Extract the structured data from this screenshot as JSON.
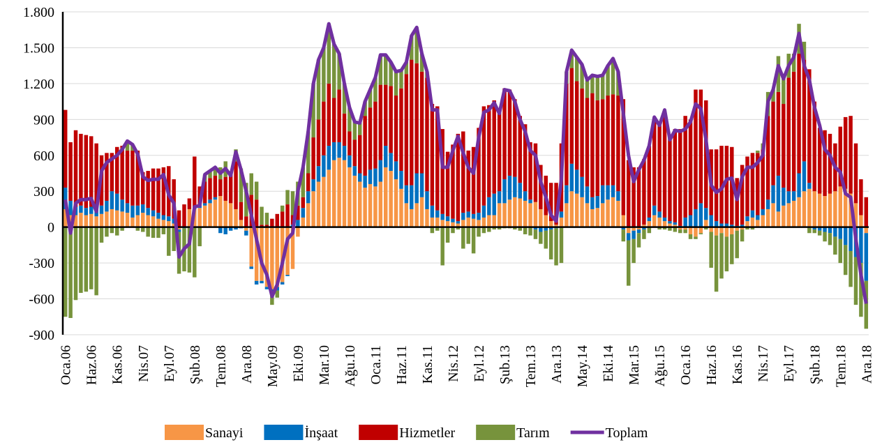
{
  "chart_data": {
    "type": "bar",
    "stacked": true,
    "categories": [
      "Oca.06",
      null,
      null,
      null,
      null,
      "Haz.06",
      null,
      null,
      null,
      null,
      "Kas.06",
      null,
      null,
      null,
      null,
      "Nis.07",
      null,
      null,
      null,
      null,
      "Eyl.07",
      null,
      null,
      null,
      null,
      "Şub.08",
      null,
      null,
      null,
      null,
      "Tem.08",
      null,
      null,
      null,
      null,
      "Ara.08",
      null,
      null,
      null,
      null,
      "May.09",
      null,
      null,
      null,
      null,
      "Eki.09",
      null,
      null,
      null,
      null,
      "Mar.10",
      null,
      null,
      null,
      null,
      "Ağu.10",
      null,
      null,
      null,
      null,
      "Oca.11",
      null,
      null,
      null,
      null,
      "Haz.11",
      null,
      null,
      null,
      null,
      "Kas.11",
      null,
      null,
      null,
      null,
      "Nis.12",
      null,
      null,
      null,
      null,
      "Eyl.12",
      null,
      null,
      null,
      null,
      "Şub.13",
      null,
      null,
      null,
      null,
      "Tem.13",
      null,
      null,
      null,
      null,
      "Ara.13",
      null,
      null,
      null,
      null,
      "May.14",
      null,
      null,
      null,
      null,
      "Eki.14",
      null,
      null,
      null,
      null,
      "Mar.15",
      null,
      null,
      null,
      null,
      "Ağu.15",
      null,
      null,
      null,
      null,
      "Oca.16",
      null,
      null,
      null,
      null,
      "Haz.16",
      null,
      null,
      null,
      null,
      "Kas.16",
      null,
      null,
      null,
      null,
      "Nis.17",
      null,
      null,
      null,
      null,
      "Eyl.17",
      null,
      null,
      null,
      null,
      "Şub.18",
      null,
      null,
      null,
      null,
      "Tem.18",
      null,
      null,
      null,
      null,
      "Ara.18"
    ],
    "series": [
      {
        "name": "Sanayi",
        "color": "#F79646",
        "values": [
          150,
          100,
          100,
          120,
          100,
          110,
          90,
          110,
          130,
          150,
          140,
          130,
          120,
          80,
          100,
          120,
          100,
          90,
          70,
          60,
          50,
          30,
          -20,
          0,
          150,
          150,
          160,
          180,
          200,
          230,
          260,
          220,
          200,
          150,
          60,
          -30,
          -330,
          -450,
          -450,
          -500,
          -520,
          -500,
          -460,
          -400,
          -350,
          -80,
          80,
          200,
          300,
          380,
          420,
          480,
          560,
          580,
          560,
          500,
          430,
          380,
          330,
          360,
          340,
          380,
          500,
          470,
          400,
          320,
          200,
          150,
          200,
          250,
          150,
          80,
          80,
          60,
          50,
          40,
          30,
          60,
          80,
          70,
          60,
          80,
          100,
          100,
          200,
          200,
          230,
          250,
          240,
          220,
          200,
          210,
          150,
          100,
          50,
          20,
          80,
          200,
          300,
          280,
          250,
          200,
          150,
          160,
          200,
          230,
          250,
          220,
          100,
          -50,
          -30,
          -20,
          20,
          50,
          100,
          80,
          50,
          30,
          20,
          -20,
          -20,
          -60,
          -80,
          -50,
          60,
          -40,
          -70,
          -50,
          -80,
          -60,
          -30,
          -20,
          50,
          80,
          60,
          100,
          150,
          200,
          130,
          180,
          200,
          220,
          250,
          300,
          320,
          300,
          280,
          260,
          280,
          300,
          340,
          320,
          280,
          200,
          100,
          -50
        ]
      },
      {
        "name": "İnşaat",
        "color": "#0070C0",
        "values": [
          180,
          120,
          70,
          60,
          60,
          60,
          50,
          70,
          90,
          150,
          140,
          100,
          80,
          100,
          80,
          70,
          60,
          50,
          50,
          40,
          40,
          40,
          -20,
          -10,
          0,
          10,
          20,
          20,
          30,
          20,
          -50,
          -60,
          -30,
          -20,
          -10,
          -40,
          -20,
          -30,
          -20,
          -20,
          -30,
          -30,
          -20,
          -10,
          20,
          60,
          80,
          100,
          100,
          130,
          180,
          200,
          150,
          130,
          120,
          100,
          80,
          70,
          100,
          120,
          150,
          180,
          180,
          150,
          150,
          150,
          150,
          200,
          250,
          200,
          150,
          100,
          60,
          50,
          40,
          30,
          20,
          60,
          50,
          40,
          60,
          100,
          150,
          180,
          100,
          200,
          200,
          170,
          130,
          80,
          30,
          -20,
          -40,
          -30,
          -20,
          -10,
          50,
          150,
          230,
          200,
          170,
          140,
          100,
          100,
          150,
          120,
          100,
          80,
          -20,
          -60,
          -70,
          -30,
          -20,
          30,
          80,
          50,
          30,
          20,
          20,
          10,
          80,
          100,
          150,
          200,
          100,
          100,
          50,
          30,
          30,
          20,
          10,
          20,
          40,
          60,
          40,
          50,
          80,
          150,
          300,
          150,
          100,
          80,
          200,
          250,
          50,
          -20,
          -30,
          -40,
          -50,
          -80,
          -100,
          -150,
          -200,
          -250,
          -300,
          -400
        ]
      },
      {
        "name": "Hizmetler",
        "color": "#C00000",
        "values": [
          650,
          490,
          640,
          600,
          610,
          590,
          560,
          420,
          400,
          320,
          390,
          450,
          440,
          460,
          460,
          270,
          310,
          350,
          370,
          400,
          420,
          330,
          140,
          190,
          90,
          430,
          160,
          180,
          180,
          180,
          140,
          200,
          250,
          400,
          150,
          90,
          270,
          230,
          20,
          20,
          70,
          110,
          130,
          190,
          80,
          120,
          90,
          150,
          350,
          390,
          450,
          520,
          370,
          440,
          270,
          200,
          220,
          320,
          500,
          520,
          560,
          630,
          510,
          560,
          550,
          690,
          930,
          1050,
          920,
          850,
          950,
          850,
          870,
          710,
          540,
          620,
          730,
          680,
          510,
          560,
          710,
          830,
          770,
          780,
          670,
          760,
          720,
          650,
          560,
          560,
          480,
          490,
          370,
          330,
          320,
          350,
          570,
          850,
          800,
          740,
          740,
          740,
          870,
          800,
          720,
          750,
          760,
          800,
          970,
          560,
          500,
          500,
          550,
          600,
          700,
          750,
          850,
          700,
          780,
          810,
          850,
          800,
          1000,
          950,
          900,
          550,
          600,
          650,
          650,
          650,
          400,
          500,
          500,
          480,
          520,
          500,
          700,
          700,
          700,
          700,
          950,
          1000,
          1000,
          850,
          950,
          750,
          550,
          550,
          500,
          400,
          500,
          600,
          650,
          500,
          300,
          250
        ]
      },
      {
        "name": "Tarım",
        "color": "#77933C",
        "values": [
          -750,
          -760,
          -610,
          -550,
          -540,
          -520,
          -570,
          -130,
          -80,
          -50,
          -70,
          -30,
          80,
          50,
          -30,
          -40,
          -80,
          -90,
          -90,
          -60,
          -240,
          -200,
          -350,
          -360,
          -380,
          -420,
          -160,
          60,
          60,
          70,
          100,
          130,
          10,
          100,
          280,
          280,
          180,
          150,
          150,
          100,
          -100,
          -60,
          50,
          120,
          200,
          200,
          250,
          350,
          450,
          500,
          450,
          500,
          450,
          300,
          250,
          200,
          150,
          100,
          120,
          150,
          200,
          250,
          250,
          200,
          200,
          150,
          100,
          200,
          300,
          150,
          50,
          -50,
          -30,
          -320,
          -130,
          -50,
          -20,
          -180,
          -140,
          -220,
          -80,
          -50,
          -40,
          -20,
          -20,
          -10,
          -10,
          -20,
          -30,
          -60,
          -70,
          -80,
          -100,
          -150,
          -250,
          -310,
          -300,
          100,
          150,
          200,
          200,
          150,
          150,
          200,
          200,
          250,
          300,
          200,
          -100,
          -380,
          -200,
          -120,
          -80,
          -50,
          0,
          -20,
          -20,
          -30,
          -40,
          -30,
          -30,
          -40,
          -20,
          -10,
          -20,
          -300,
          -470,
          -380,
          -290,
          -250,
          -230,
          -100,
          -20,
          -20,
          20,
          50,
          200,
          100,
          300,
          250,
          200,
          150,
          250,
          150,
          -50,
          -30,
          -40,
          -80,
          -100,
          -150,
          -200,
          -250,
          -300,
          -400,
          -450,
          -400
        ]
      },
      {
        "name": "Toplam",
        "color": "#7030A0",
        "type": "line",
        "values": [
          230,
          -50,
          200,
          230,
          230,
          240,
          130,
          470,
          540,
          570,
          600,
          650,
          720,
          690,
          610,
          420,
          390,
          400,
          400,
          440,
          270,
          200,
          -250,
          -180,
          -140,
          170,
          180,
          440,
          470,
          500,
          450,
          490,
          430,
          630,
          480,
          300,
          100,
          -100,
          -300,
          -400,
          -580,
          -480,
          -300,
          -100,
          -50,
          300,
          500,
          800,
          1200,
          1400,
          1500,
          1700,
          1530,
          1450,
          1200,
          1000,
          880,
          870,
          1050,
          1150,
          1250,
          1440,
          1440,
          1380,
          1300,
          1310,
          1380,
          1600,
          1670,
          1450,
          1300,
          980,
          980,
          500,
          500,
          640,
          760,
          620,
          500,
          450,
          750,
          960,
          980,
          1040,
          950,
          1150,
          1140,
          1050,
          900,
          800,
          640,
          600,
          380,
          250,
          100,
          50,
          400,
          1300,
          1480,
          1420,
          1360,
          1230,
          1270,
          1260,
          1270,
          1350,
          1410,
          1300,
          950,
          600,
          380,
          480,
          560,
          680,
          920,
          850,
          980,
          730,
          810,
          800,
          820,
          880,
          1030,
          990,
          730,
          350,
          290,
          320,
          400,
          410,
          230,
          420,
          500,
          500,
          540,
          600,
          1050,
          1150,
          1350,
          1240,
          1350,
          1420,
          1620,
          1350,
          1230,
          1000,
          850,
          650,
          600,
          500,
          460,
          280,
          250,
          -100,
          -400,
          -640
        ]
      }
    ],
    "ylim": [
      -900,
      1800
    ],
    "yticks": [
      -900,
      -600,
      -300,
      0,
      300,
      600,
      900,
      {
        "value": 1200,
        "label": "1.200"
      },
      {
        "value": 1500,
        "label": "1.500"
      },
      {
        "value": 1800,
        "label": "1.800"
      }
    ],
    "grid": true,
    "legend": "bottom"
  }
}
